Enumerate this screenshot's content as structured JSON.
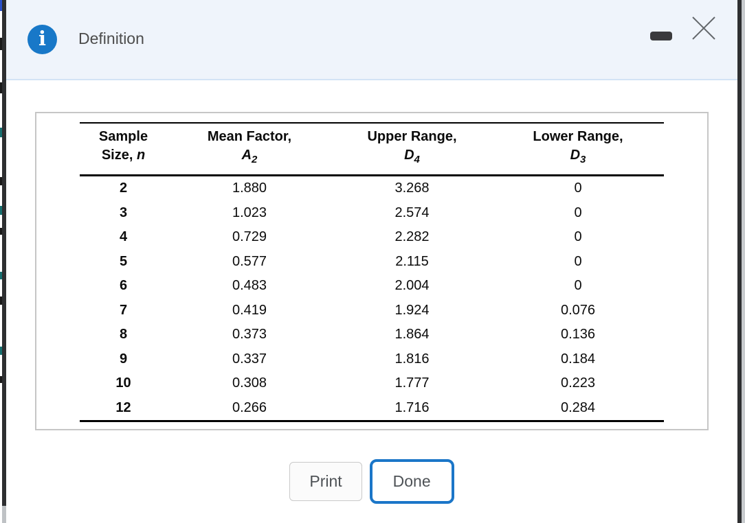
{
  "window": {
    "title": "Definition",
    "info_glyph": "i",
    "icons": {
      "info": "info-icon",
      "minimize": "minimize-icon",
      "close": "close-icon"
    }
  },
  "colors": {
    "accent_blue": "#1b76c8",
    "info_icon_blue": "#1878c8",
    "header_bg": "#eff4fb",
    "table_text": "#0b0b0b"
  },
  "table": {
    "columns": [
      {
        "line1": "Sample",
        "prefix": "Size, ",
        "symbol": "n",
        "sub": ""
      },
      {
        "line1": "Mean Factor,",
        "prefix": "",
        "symbol": "A",
        "sub": "2"
      },
      {
        "line1": "Upper Range,",
        "prefix": "",
        "symbol": "D",
        "sub": "4"
      },
      {
        "line1": "Lower Range,",
        "prefix": "",
        "symbol": "D",
        "sub": "3"
      }
    ],
    "rows": [
      [
        "2",
        "1.880",
        "3.268",
        "0"
      ],
      [
        "3",
        "1.023",
        "2.574",
        "0"
      ],
      [
        "4",
        "0.729",
        "2.282",
        "0"
      ],
      [
        "5",
        "0.577",
        "2.115",
        "0"
      ],
      [
        "6",
        "0.483",
        "2.004",
        "0"
      ],
      [
        "7",
        "0.419",
        "1.924",
        "0.076"
      ],
      [
        "8",
        "0.373",
        "1.864",
        "0.136"
      ],
      [
        "9",
        "0.337",
        "1.816",
        "0.184"
      ],
      [
        "10",
        "0.308",
        "1.777",
        "0.223"
      ],
      [
        "12",
        "0.266",
        "1.716",
        "0.284"
      ]
    ]
  },
  "buttons": {
    "print": "Print",
    "done": "Done"
  }
}
